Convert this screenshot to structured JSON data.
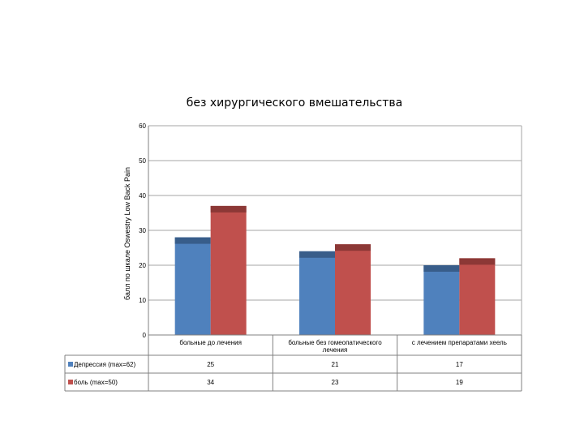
{
  "chart_data": {
    "type": "bar",
    "title": "без хирургического вмешательства",
    "xlabel": "",
    "ylabel": "балл по шкале Oswestry Low Back Pain",
    "ylim": [
      0,
      60
    ],
    "yticks": [
      0,
      10,
      20,
      30,
      40,
      50,
      60
    ],
    "grid": true,
    "categories": [
      "больные до лечения",
      "больные без гомеопатического лечения",
      "с лечением препаратами хеель"
    ],
    "series": [
      {
        "name": "Депрессия (max=62)",
        "values": [
          28,
          24,
          20
        ],
        "table_values": [
          "25",
          "21",
          "17"
        ],
        "color": "#4f81bd",
        "cap_color": "#385d8a"
      },
      {
        "name": "боль (max=50)",
        "values": [
          37,
          26,
          22
        ],
        "table_values": [
          "34",
          "23",
          "19"
        ],
        "color": "#c0504d",
        "cap_color": "#8c3836"
      }
    ]
  }
}
